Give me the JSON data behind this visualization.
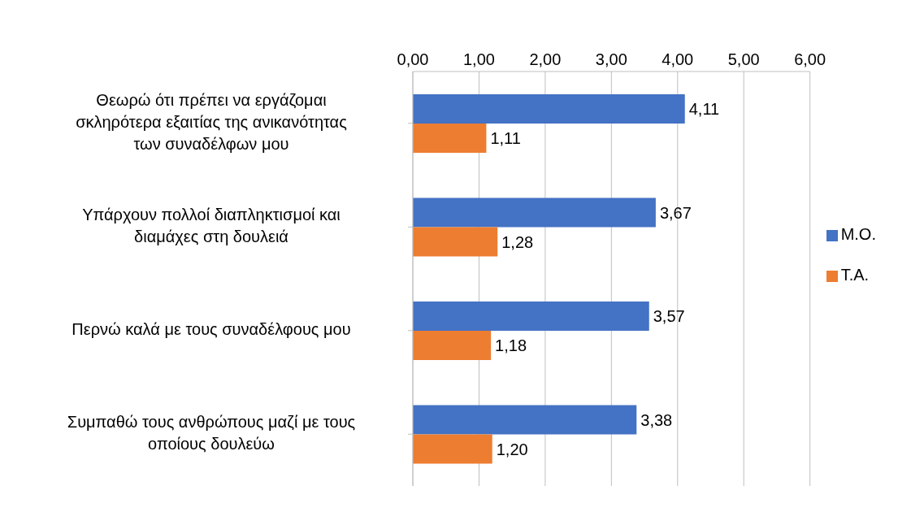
{
  "chart_data": {
    "type": "bar",
    "orientation": "horizontal",
    "categories": [
      "Θεωρώ ότι πρέπει να εργάζομαι σκληρότερα εξαιτίας της ανικανότητας των συναδέλφων μου",
      "Υπάρχουν πολλοί διαπληκτισμοί και διαμάχες στη δουλειά",
      "Περνώ καλά με τους συναδέλφους μου",
      "Συμπαθώ τους ανθρώπους μαζί με τους οποίους δουλεύω"
    ],
    "series": [
      {
        "name": "Μ.Ο.",
        "color": "#4472c4",
        "values": [
          4.11,
          3.67,
          3.57,
          3.38
        ],
        "value_labels": [
          "4,11",
          "3,67",
          "3,57",
          "3,38"
        ]
      },
      {
        "name": "Τ.Α.",
        "color": "#ed7d31",
        "values": [
          1.11,
          1.28,
          1.18,
          1.2
        ],
        "value_labels": [
          "1,11",
          "1,28",
          "1,18",
          "1,20"
        ]
      }
    ],
    "xlim": [
      0,
      6
    ],
    "xticks": [
      {
        "value": 0,
        "label": "0,00"
      },
      {
        "value": 1,
        "label": "1,00"
      },
      {
        "value": 2,
        "label": "2,00"
      },
      {
        "value": 3,
        "label": "3,00"
      },
      {
        "value": 4,
        "label": "4,00"
      },
      {
        "value": 5,
        "label": "5,00"
      },
      {
        "value": 6,
        "label": "6,00"
      }
    ],
    "grid": "x",
    "legend": "right"
  }
}
